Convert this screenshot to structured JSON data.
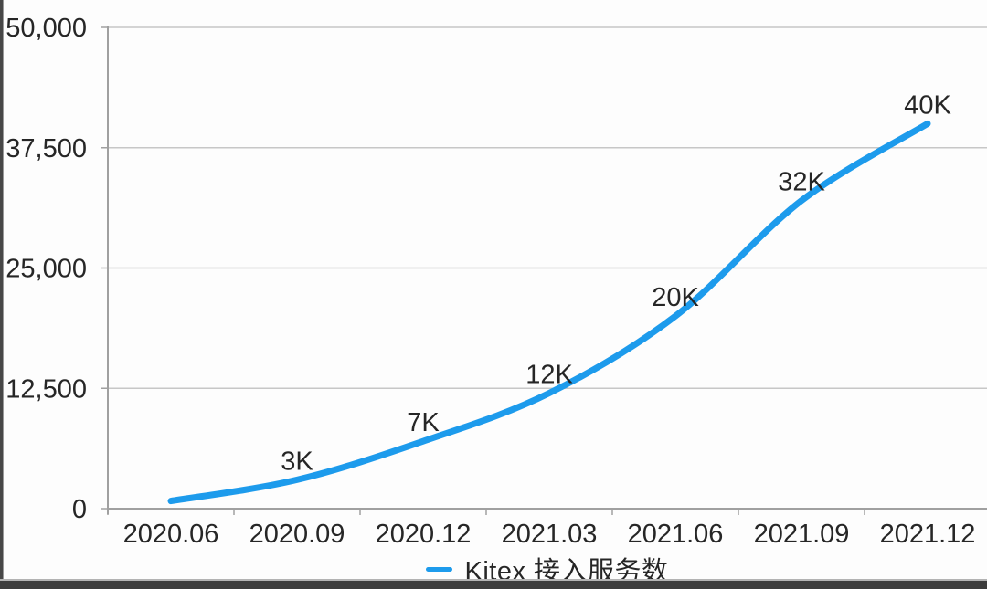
{
  "chart_data": {
    "type": "line",
    "title": "",
    "xlabel": "",
    "ylabel": "",
    "categories": [
      "2020.06",
      "2020.09",
      "2020.12",
      "2021.03",
      "2021.06",
      "2021.09",
      "2021.12"
    ],
    "series": [
      {
        "name": "Kitex 接入服务数",
        "values": [
          800,
          3000,
          7000,
          12000,
          20000,
          32000,
          40000
        ],
        "point_labels": [
          "",
          "3K",
          "7K",
          "12K",
          "20K",
          "32K",
          "40K"
        ],
        "color": "#1D9BEC"
      }
    ],
    "ylim": [
      0,
      50000
    ],
    "y_ticks": [
      0,
      12500,
      25000,
      37500,
      50000
    ],
    "y_tick_labels": [
      "0",
      "12,500",
      "25,000",
      "37,500",
      "50,000"
    ],
    "grid": "horizontal",
    "legend_position": "bottom"
  },
  "legend": {
    "label": "Kitex 接入服务数"
  },
  "colors": {
    "line": "#1D9BEC",
    "grid": "#c7c7c7",
    "axis": "#a0a0a0",
    "text": "#262626",
    "background": "#fdfdfd",
    "frame": "#3c3c3c"
  }
}
